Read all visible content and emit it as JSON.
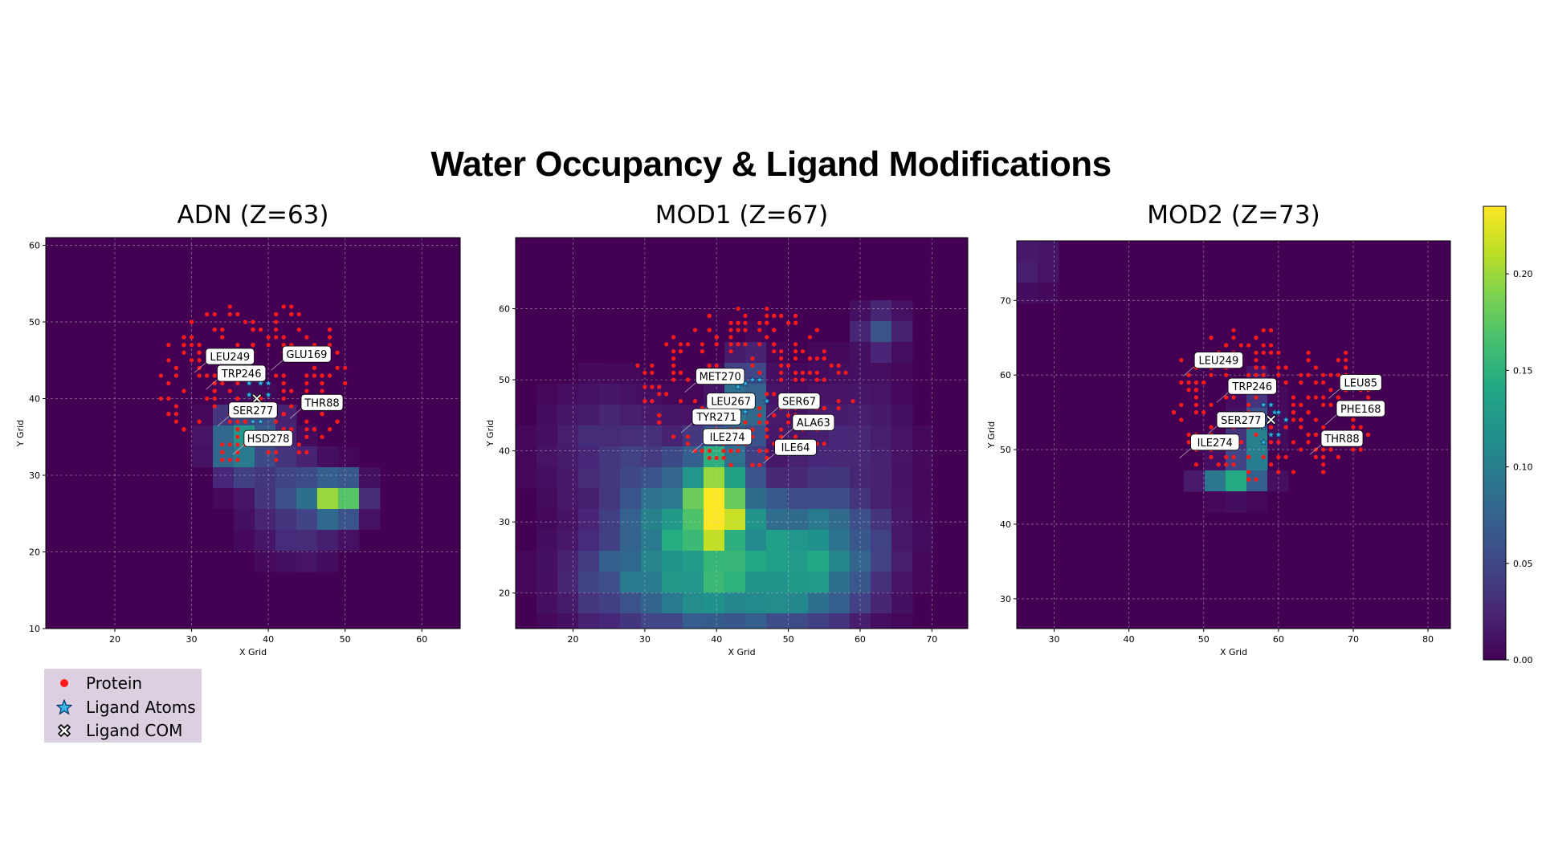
{
  "title": "Water Occupancy & Ligand Modifications",
  "colors": {
    "protein": "#ff1a1a",
    "ligand_atoms": "#35b4e6",
    "label_bg": "#ffffff",
    "grid": "#c8c8c8",
    "background": "#440154"
  },
  "legend": {
    "placement": "bottom-left, below first panel",
    "items": [
      {
        "label": "Protein",
        "marker": "red-dot-icon"
      },
      {
        "label": "Ligand Atoms",
        "marker": "star-icon"
      },
      {
        "label": "Ligand COM",
        "marker": "x-cross-icon"
      }
    ]
  },
  "colorbar": {
    "colormap": "viridis",
    "range": [
      0,
      0.235
    ],
    "ticks": [
      "0.00",
      "0.05",
      "0.10",
      "0.15",
      "0.20"
    ],
    "tick_values": [
      0,
      0.05,
      0.1,
      0.15,
      0.2
    ]
  },
  "chart_data": [
    {
      "type": "heatmap",
      "title": "ADN (Z=63)",
      "xlabel": "X Grid",
      "ylabel": "Y Grid",
      "xlim": [
        11,
        65
      ],
      "ylim": [
        10,
        61
      ],
      "xticks": [
        20,
        30,
        40,
        50,
        60
      ],
      "yticks": [
        10,
        20,
        30,
        40,
        50,
        60
      ],
      "grid": true,
      "hotspots": [
        {
          "x": 49,
          "y": 27,
          "value": 0.23,
          "sx": 2.0,
          "sy": 1.8
        },
        {
          "x": 36,
          "y": 34,
          "value": 0.13,
          "sx": 2.2,
          "sy": 2.6
        },
        {
          "x": 40,
          "y": 37,
          "value": 0.05,
          "sx": 2.0,
          "sy": 1.5
        },
        {
          "x": 44,
          "y": 25,
          "value": 0.04,
          "sx": 4.0,
          "sy": 4.0
        },
        {
          "x": 42,
          "y": 30,
          "value": 0.03,
          "sx": 3.0,
          "sy": 3.0
        }
      ],
      "residue_labels": [
        {
          "text": "LEU249",
          "x": 35,
          "y": 45.5
        },
        {
          "text": "GLU169",
          "x": 45,
          "y": 45.8
        },
        {
          "text": "TRP246",
          "x": 36.5,
          "y": 43.3
        },
        {
          "text": "SER277",
          "x": 38,
          "y": 38.5
        },
        {
          "text": "THR88",
          "x": 47,
          "y": 39.5
        },
        {
          "text": "HSD278",
          "x": 40,
          "y": 34.8
        }
      ],
      "ligand_atoms": [
        [
          37.5,
          42
        ],
        [
          39,
          42
        ],
        [
          40,
          42
        ],
        [
          37.5,
          40.5
        ],
        [
          40,
          40.5
        ],
        [
          37.5,
          39
        ],
        [
          37.5,
          38
        ],
        [
          38,
          37
        ],
        [
          39,
          37
        ]
      ],
      "ligand_com": [
        38.5,
        40
      ]
    },
    {
      "type": "heatmap",
      "title": "MOD1 (Z=67)",
      "xlabel": "X Grid",
      "ylabel": "Y Grid",
      "xlim": [
        12,
        75
      ],
      "ylim": [
        15,
        70
      ],
      "xticks": [
        20,
        30,
        40,
        50,
        60,
        70
      ],
      "yticks": [
        20,
        30,
        40,
        50,
        60
      ],
      "grid": true,
      "hotspots": [
        {
          "x": 40,
          "y": 34,
          "value": 0.19,
          "sx": 2.5,
          "sy": 4.5
        },
        {
          "x": 44,
          "y": 47,
          "value": 0.11,
          "sx": 2.0,
          "sy": 4.0
        },
        {
          "x": 36,
          "y": 31,
          "value": 0.09,
          "sx": 6.0,
          "sy": 6.0
        },
        {
          "x": 48,
          "y": 27,
          "value": 0.09,
          "sx": 8.0,
          "sy": 5.0
        },
        {
          "x": 30,
          "y": 22,
          "value": 0.07,
          "sx": 7.0,
          "sy": 5.0
        },
        {
          "x": 44,
          "y": 19,
          "value": 0.08,
          "sx": 8.0,
          "sy": 4.0
        },
        {
          "x": 56,
          "y": 24,
          "value": 0.06,
          "sx": 5.0,
          "sy": 5.0
        },
        {
          "x": 63,
          "y": 57,
          "value": 0.06,
          "sx": 2.0,
          "sy": 2.0
        },
        {
          "x": 25,
          "y": 40,
          "value": 0.03,
          "sx": 6.0,
          "sy": 6.0
        },
        {
          "x": 58,
          "y": 40,
          "value": 0.025,
          "sx": 6.0,
          "sy": 8.0
        }
      ],
      "residue_labels": [
        {
          "text": "MET270",
          "x": 40.5,
          "y": 50.5
        },
        {
          "text": "LEU267",
          "x": 42,
          "y": 47
        },
        {
          "text": "SER67",
          "x": 51.5,
          "y": 47
        },
        {
          "text": "TYR271",
          "x": 40,
          "y": 44.8
        },
        {
          "text": "ALA63",
          "x": 53.5,
          "y": 44
        },
        {
          "text": "ILE274",
          "x": 41.5,
          "y": 42
        },
        {
          "text": "ILE64",
          "x": 51,
          "y": 40.5
        }
      ],
      "ligand_atoms": [
        [
          43,
          49
        ],
        [
          44,
          49.5
        ],
        [
          45,
          50
        ],
        [
          46,
          50
        ],
        [
          42,
          47
        ],
        [
          44,
          47.5
        ],
        [
          47,
          47
        ],
        [
          43,
          45
        ],
        [
          44,
          45.5
        ],
        [
          42,
          44.5
        ]
      ],
      "ligand_com": [
        44,
        47
      ]
    },
    {
      "type": "heatmap",
      "title": "MOD2 (Z=73)",
      "xlabel": "X Grid",
      "ylabel": "Y Grid",
      "xlim": [
        25,
        83
      ],
      "ylim": [
        26,
        78
      ],
      "xticks": [
        30,
        40,
        50,
        60,
        70,
        80
      ],
      "yticks": [
        30,
        40,
        50,
        60,
        70
      ],
      "grid": true,
      "hotspots": [
        {
          "x": 56,
          "y": 50,
          "value": 0.23,
          "sx": 0.9,
          "sy": 1.5
        },
        {
          "x": 54,
          "y": 46,
          "value": 0.16,
          "sx": 2.5,
          "sy": 1.2
        },
        {
          "x": 57,
          "y": 54,
          "value": 0.05,
          "sx": 1.5,
          "sy": 3.5
        },
        {
          "x": 27,
          "y": 75,
          "value": 0.02,
          "sx": 2.5,
          "sy": 3.0
        }
      ],
      "residue_labels": [
        {
          "text": "LEU249",
          "x": 52,
          "y": 62
        },
        {
          "text": "TRP246",
          "x": 56.5,
          "y": 58.5
        },
        {
          "text": "LEU85",
          "x": 71,
          "y": 59
        },
        {
          "text": "PHE168",
          "x": 71,
          "y": 55.5
        },
        {
          "text": "SER277",
          "x": 55,
          "y": 54
        },
        {
          "text": "ILE274",
          "x": 51.5,
          "y": 51
        },
        {
          "text": "THR88",
          "x": 68.5,
          "y": 51.5
        }
      ],
      "ligand_atoms": [
        [
          58,
          56
        ],
        [
          59,
          56
        ],
        [
          59.5,
          55
        ],
        [
          60,
          55
        ],
        [
          61,
          54
        ],
        [
          58,
          53
        ],
        [
          59,
          52
        ],
        [
          60,
          52
        ],
        [
          58,
          51
        ]
      ],
      "ligand_com": [
        59,
        54
      ]
    }
  ]
}
